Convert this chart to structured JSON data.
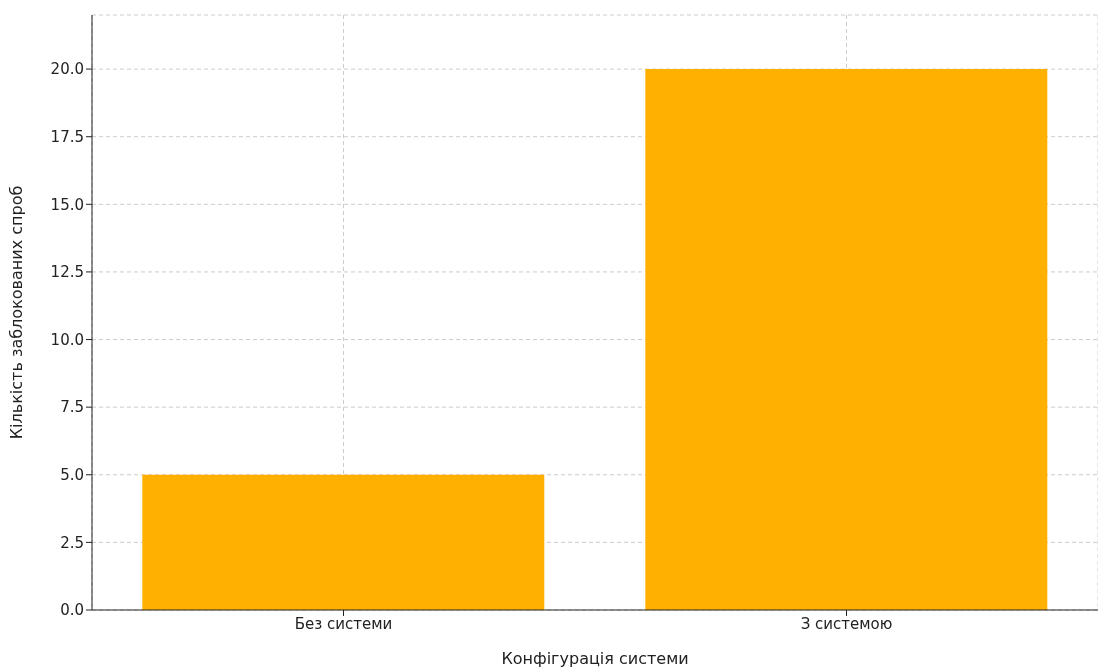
{
  "chart_data": {
    "type": "bar",
    "xlabel": "Конфігурація системи",
    "ylabel": "Кількість заблокованих спроб",
    "categories": [
      "Без системи",
      "З системою"
    ],
    "values": [
      5,
      20
    ],
    "color": "#ffb000",
    "ylim": [
      0,
      22
    ],
    "yticks": [
      {
        "value": 0,
        "label": "0.0"
      },
      {
        "value": 2.5,
        "label": "2.5"
      },
      {
        "value": 5,
        "label": "5.0"
      },
      {
        "value": 7.5,
        "label": "7.5"
      },
      {
        "value": 10,
        "label": "10.0"
      },
      {
        "value": 12.5,
        "label": "12.5"
      },
      {
        "value": 15,
        "label": "15.0"
      },
      {
        "value": 17.5,
        "label": "17.5"
      },
      {
        "value": 20,
        "label": "20.0"
      }
    ],
    "grid": true
  }
}
